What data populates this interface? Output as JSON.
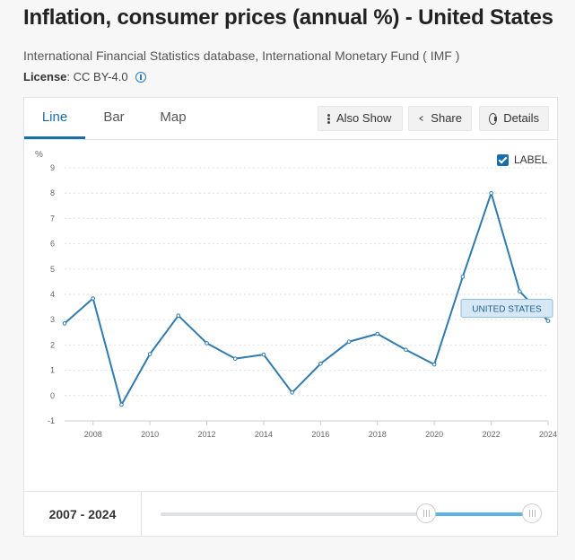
{
  "header": {
    "title": "Inflation, consumer prices (annual %) - United States",
    "source": "International Financial Statistics database, International Monetary Fund ( IMF )",
    "license_label": "License",
    "license_value": " : CC BY-4.0"
  },
  "tabs": [
    {
      "label": "Line",
      "active": true
    },
    {
      "label": "Bar",
      "active": false
    },
    {
      "label": "Map",
      "active": false
    }
  ],
  "toolbar": {
    "also_show_label": "Also Show",
    "share_label": "Share",
    "details_label": "Details"
  },
  "label_toggle": {
    "label": "LABEL",
    "checked": true
  },
  "chart_data": {
    "type": "line",
    "title": "",
    "ylabel": "%",
    "xlabel": "",
    "ylim": [
      -1,
      9
    ],
    "yticks": [
      -1,
      0,
      1,
      2,
      3,
      4,
      5,
      6,
      7,
      8,
      9
    ],
    "xlim": [
      2007,
      2024
    ],
    "xticks": [
      2008,
      2010,
      2012,
      2014,
      2016,
      2018,
      2020,
      2022,
      2024
    ],
    "grid": true,
    "line_color": "#2f7bb0",
    "series": [
      {
        "name": "UNITED STATES",
        "x": [
          2007,
          2008,
          2009,
          2010,
          2011,
          2012,
          2013,
          2014,
          2015,
          2016,
          2017,
          2018,
          2019,
          2020,
          2021,
          2022,
          2023,
          2024
        ],
        "values": [
          2.85,
          3.84,
          -0.36,
          1.64,
          3.16,
          2.07,
          1.46,
          1.62,
          0.12,
          1.26,
          2.13,
          2.44,
          1.81,
          1.23,
          4.7,
          8.0,
          4.12,
          2.95
        ]
      }
    ]
  },
  "footer": {
    "range_start": "2007",
    "range_sep": " - ",
    "range_end": "2024",
    "slider_range": [
      2007,
      2024
    ],
    "slider_selected": [
      2007,
      2024
    ]
  }
}
